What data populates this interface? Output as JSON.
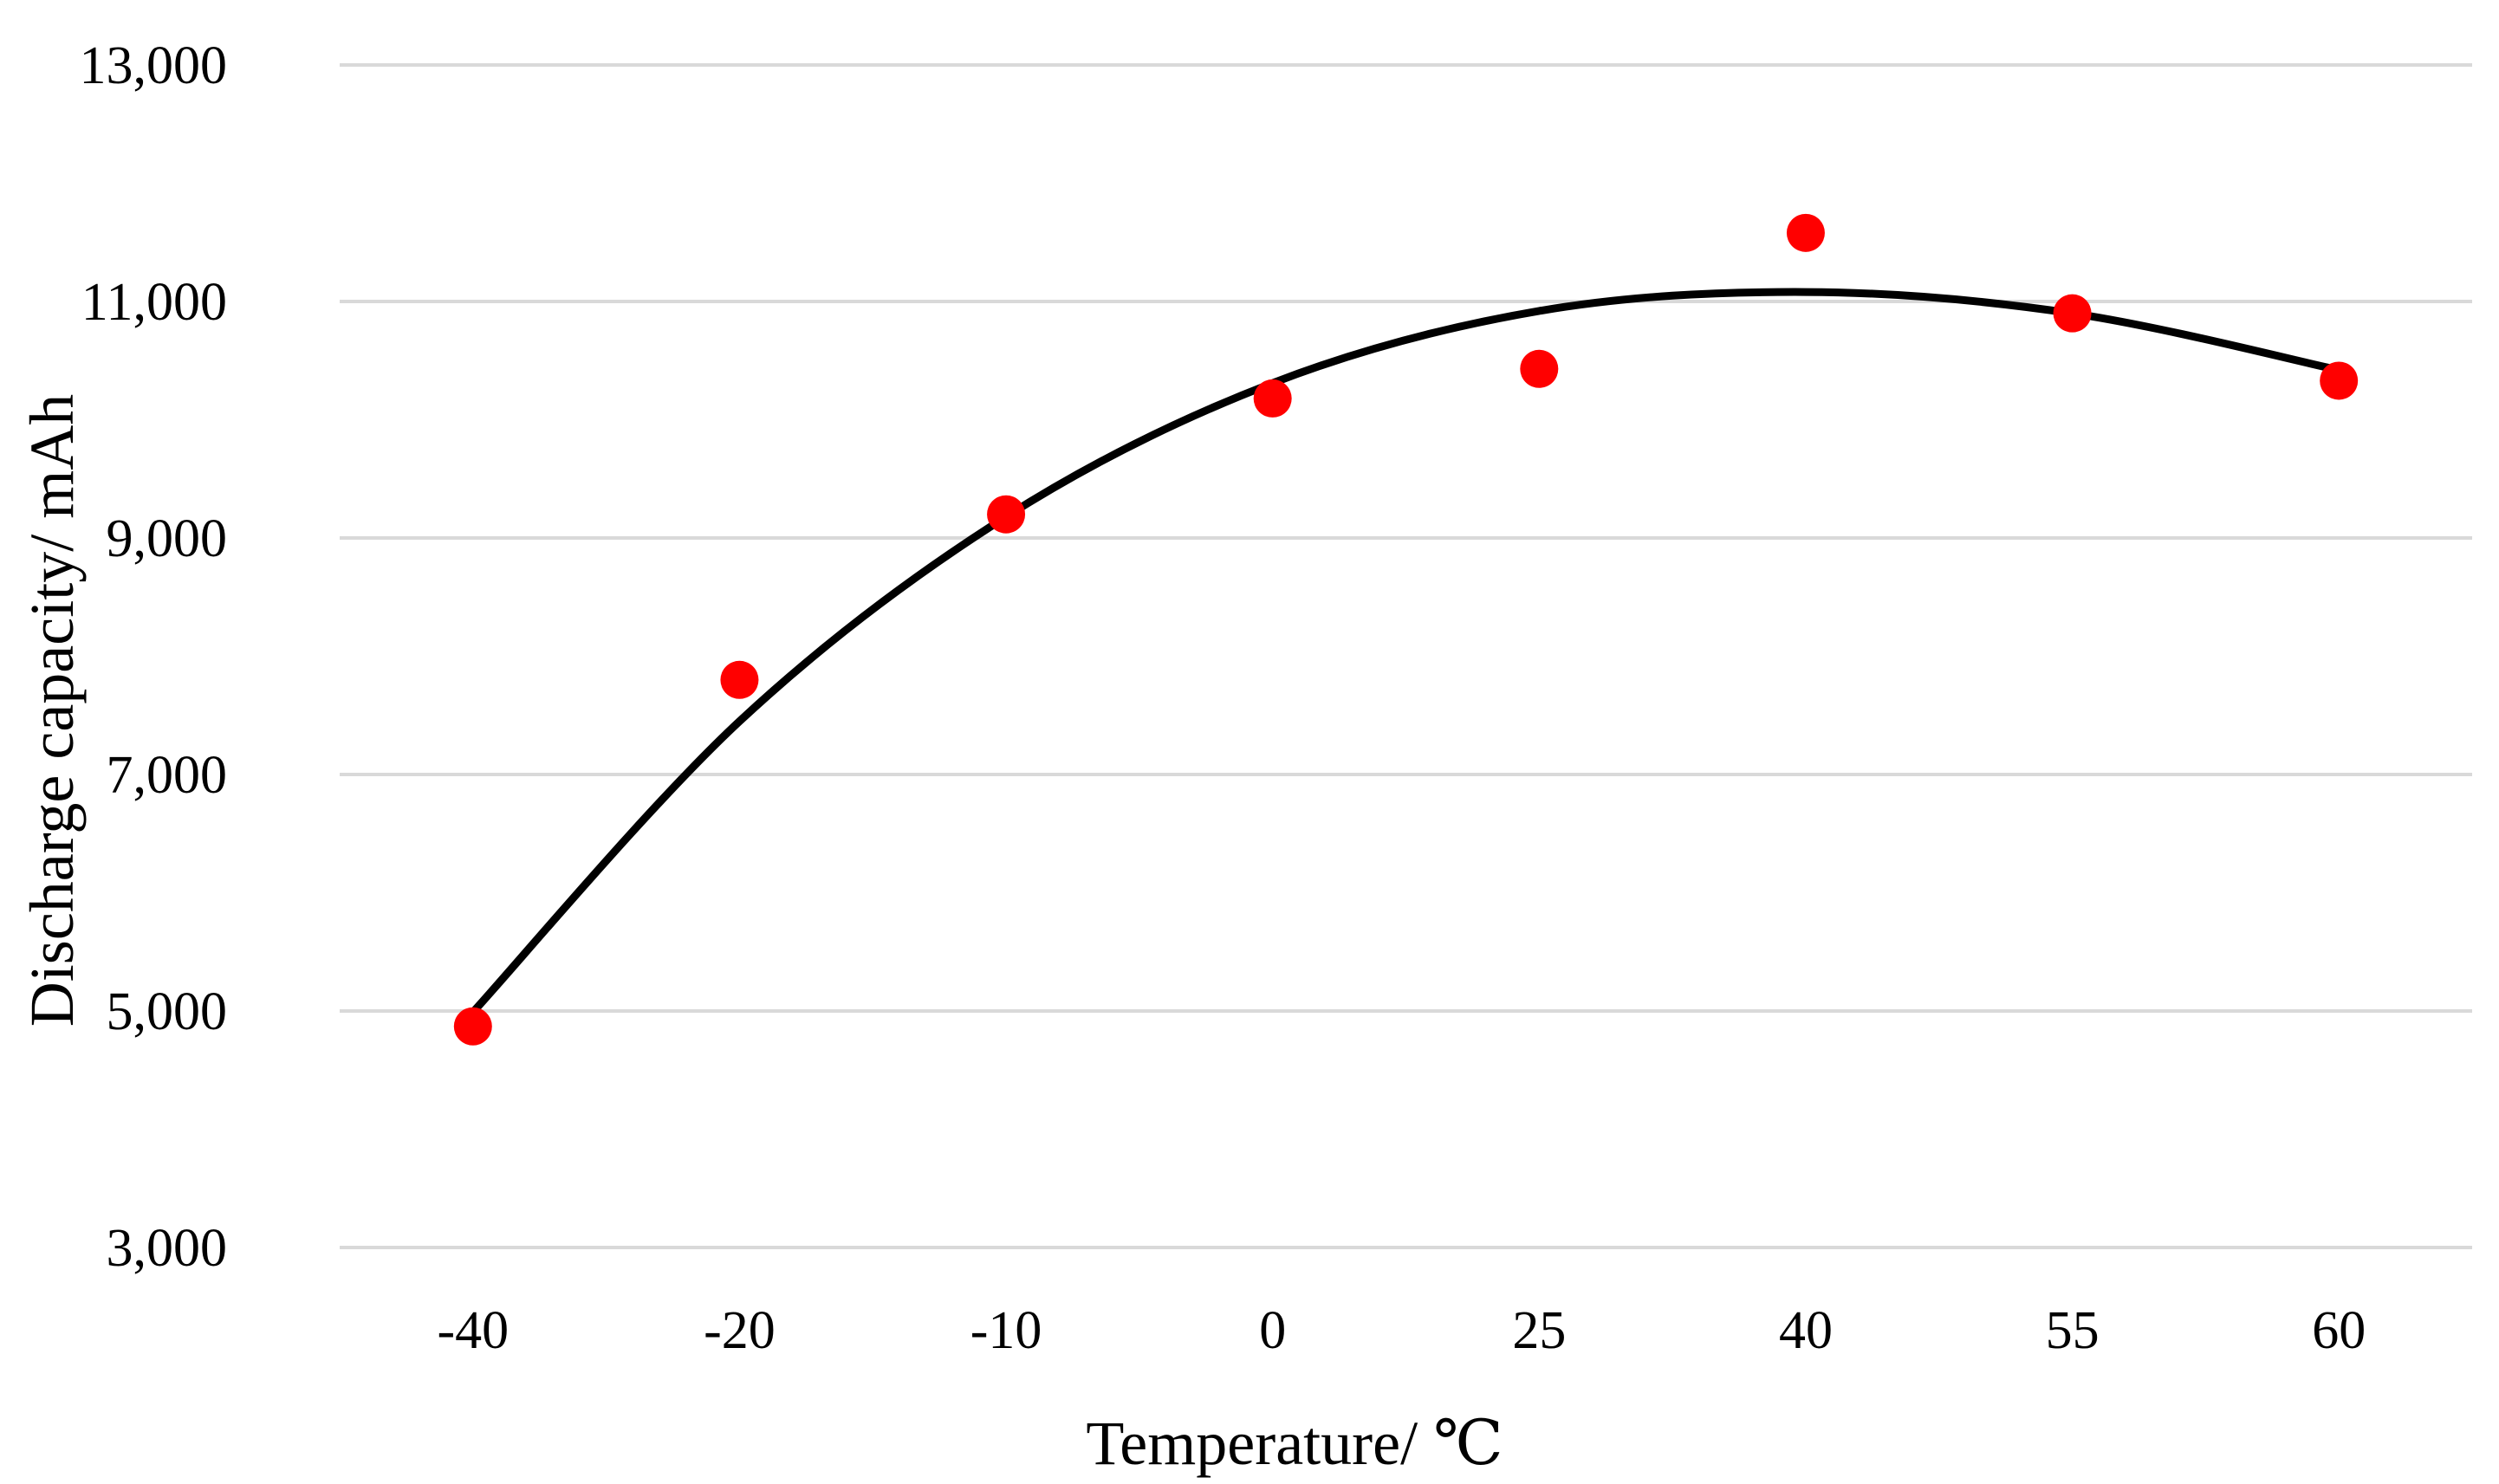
{
  "chart_data": {
    "type": "scatter",
    "title": "",
    "xlabel": "Temperature/ ℃",
    "ylabel": "Discharge capacity/ mAh",
    "categories": [
      "-40",
      "-20",
      "-10",
      "0",
      "25",
      "40",
      "55",
      "60"
    ],
    "series": [
      {
        "name": "Discharge capacity",
        "type": "scatter",
        "color": "#ff0000",
        "values": [
          4870,
          7800,
          9200,
          10180,
          10430,
          11580,
          10900,
          10330
        ]
      },
      {
        "name": "Polynomial trendline",
        "type": "line",
        "color": "#000000",
        "values": [
          4990,
          7450,
          9180,
          10310,
          10920,
          11080,
          10900,
          10420
        ]
      }
    ],
    "ylim": [
      3000,
      13000
    ],
    "yticks": [
      3000,
      5000,
      7000,
      9000,
      11000,
      13000
    ],
    "ytick_labels": [
      "3,000",
      "5,000",
      "7,000",
      "9,000",
      "11,000",
      "13,000"
    ],
    "grid": true,
    "legend": "none",
    "colors": {
      "gridline": "#d9d9d9",
      "marker": "#ff0000",
      "trendline": "#000000"
    }
  }
}
